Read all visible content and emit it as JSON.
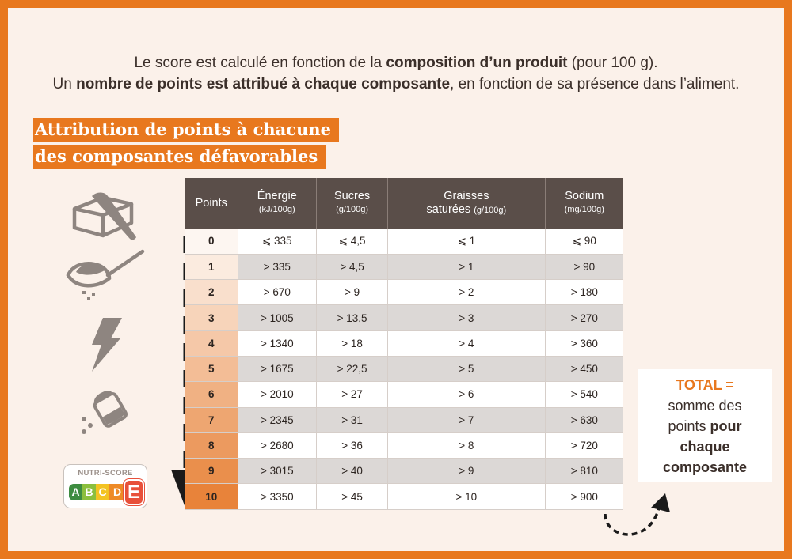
{
  "intro": {
    "line1_before": "Le score est calculé en fonction de la ",
    "line1_bold": "composition d’un produit",
    "line1_after": " (pour 100 g).",
    "line2_before": "Un ",
    "line2_bold": "nombre de points est attribué à chaque composante",
    "line2_after": ", en fonction de sa présence dans l’aliment."
  },
  "heading": {
    "line1": "Attribution de points à chacune",
    "line2": "des composantes défavorables"
  },
  "table": {
    "headers": [
      {
        "label": "Points",
        "unit": ""
      },
      {
        "label": "Énergie",
        "unit": "(kJ/100g)"
      },
      {
        "label": "Sucres",
        "unit": "(g/100g)"
      },
      {
        "label": "Graisses",
        "label2": "saturées",
        "unit": "(g/100g)"
      },
      {
        "label": "Sodium",
        "unit": "(mg/100g)"
      }
    ],
    "rows": [
      {
        "points": "0",
        "energie": "⩽ 335",
        "sucres": "⩽ 4,5",
        "graisses": "⩽ 1",
        "sodium": "⩽ 90"
      },
      {
        "points": "1",
        "energie": "> 335",
        "sucres": "> 4,5",
        "graisses": "> 1",
        "sodium": "> 90"
      },
      {
        "points": "2",
        "energie": "> 670",
        "sucres": "> 9",
        "graisses": "> 2",
        "sodium": "> 180"
      },
      {
        "points": "3",
        "energie": "> 1005",
        "sucres": "> 13,5",
        "graisses": "> 3",
        "sodium": "> 270"
      },
      {
        "points": "4",
        "energie": "> 1340",
        "sucres": "> 18",
        "graisses": "> 4",
        "sodium": "> 360"
      },
      {
        "points": "5",
        "energie": "> 1675",
        "sucres": "> 22,5",
        "graisses": "> 5",
        "sodium": "> 450"
      },
      {
        "points": "6",
        "energie": "> 2010",
        "sucres": "> 27",
        "graisses": "> 6",
        "sodium": "> 540"
      },
      {
        "points": "7",
        "energie": "> 2345",
        "sucres": "> 31",
        "graisses": "> 7",
        "sodium": "> 630"
      },
      {
        "points": "8",
        "energie": "> 2680",
        "sucres": "> 36",
        "graisses": "> 8",
        "sodium": "> 720"
      },
      {
        "points": "9",
        "energie": "> 3015",
        "sucres": "> 40",
        "graisses": "> 9",
        "sodium": "> 810"
      },
      {
        "points": "10",
        "energie": "> 3350",
        "sucres": "> 45",
        "graisses": "> 10",
        "sodium": "> 900"
      }
    ]
  },
  "total": {
    "title": "TOTAL =",
    "line1": "somme des",
    "line2_before": "points ",
    "line2_bold": "pour",
    "line3_bold": "chaque",
    "line4_bold": "composante"
  },
  "nutriscore": {
    "label": "NUTRI-SCORE",
    "letters": [
      "A",
      "B",
      "C",
      "D"
    ],
    "selected": "E",
    "colors": [
      "#3d8c40",
      "#8bbf3d",
      "#f3c322",
      "#ee8a26",
      "#e8503a"
    ]
  },
  "icons": [
    "butter-icon",
    "sugar-spoon-icon",
    "energy-bolt-icon",
    "salt-shaker-icon",
    "down-arrow-icon",
    "curved-arrow-icon"
  ],
  "colors": {
    "accent": "#e8781e",
    "header_bg": "#5a4e49",
    "gradient_start": "#fdf6f1",
    "gradient_end": "#e8833a"
  }
}
